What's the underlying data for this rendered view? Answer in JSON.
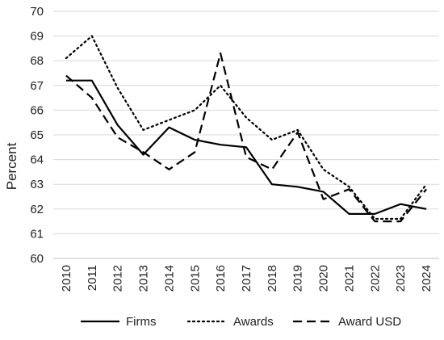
{
  "chart_data": {
    "type": "line",
    "title": "",
    "xlabel": "",
    "ylabel": "Percent",
    "ylim": [
      60,
      70
    ],
    "yticks": [
      "60",
      "61",
      "62",
      "63",
      "64",
      "65",
      "66",
      "67",
      "68",
      "69",
      "70"
    ],
    "grid": "horizontal",
    "legend_position": "bottom",
    "categories": [
      "2010",
      "2011",
      "2012",
      "2013",
      "2014",
      "2015",
      "2016",
      "2017",
      "2018",
      "2019",
      "2020",
      "2021",
      "2022",
      "2023",
      "2024"
    ],
    "series": [
      {
        "name": "Firms",
        "style": "solid",
        "color": "#000000",
        "values": [
          67.2,
          67.2,
          65.4,
          64.2,
          65.3,
          64.8,
          64.6,
          64.5,
          63.0,
          62.9,
          62.7,
          61.8,
          61.8,
          62.2,
          62.0
        ]
      },
      {
        "name": "Awards",
        "style": "dotted",
        "color": "#000000",
        "values": [
          68.1,
          69.0,
          66.9,
          65.2,
          65.6,
          66.0,
          67.0,
          65.7,
          64.8,
          65.2,
          63.6,
          62.9,
          61.6,
          61.6,
          63.0
        ]
      },
      {
        "name": "Award USD",
        "style": "dashed",
        "color": "#000000",
        "values": [
          67.4,
          66.5,
          64.9,
          64.3,
          63.6,
          64.3,
          68.3,
          64.1,
          63.6,
          65.1,
          62.4,
          62.8,
          61.5,
          61.5,
          62.8
        ]
      }
    ]
  }
}
